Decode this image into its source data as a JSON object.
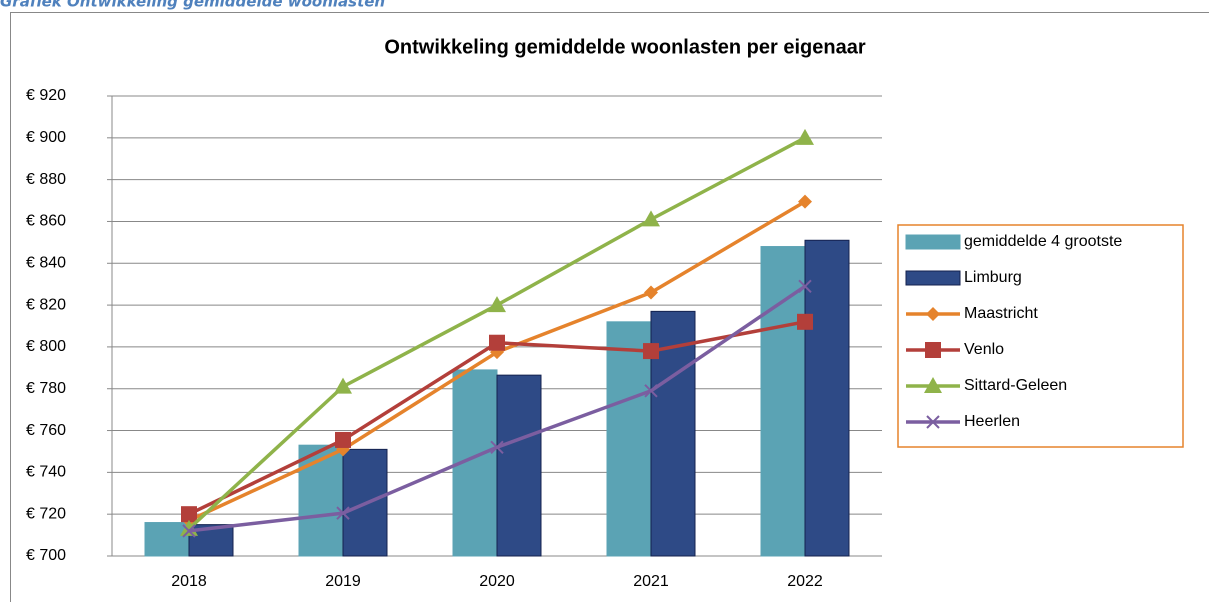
{
  "caption": "Grafiek Ontwikkeling gemiddelde woonlasten",
  "chart_data": {
    "type": "combo",
    "title": "Ontwikkeling gemiddelde woonlasten per eigenaar",
    "categories": [
      "2018",
      "2019",
      "2020",
      "2021",
      "2022"
    ],
    "series": [
      {
        "name": "gemiddelde 4 grootste",
        "type": "bar",
        "color": "#5ba3b4",
        "values": [
          716,
          753,
          789,
          812,
          848
        ]
      },
      {
        "name": "Limburg",
        "type": "bar",
        "color": "#2e4a86",
        "values": [
          715,
          751,
          786.5,
          817,
          851
        ]
      },
      {
        "name": "Maastricht",
        "type": "line",
        "marker": "diamond",
        "color": "#e5832c",
        "values": [
          717,
          751,
          797.5,
          826,
          869.5
        ]
      },
      {
        "name": "Venlo",
        "type": "line",
        "marker": "square",
        "color": "#b33f3a",
        "values": [
          720,
          755.5,
          802,
          798,
          812
        ]
      },
      {
        "name": "Sittard-Geleen",
        "type": "line",
        "marker": "triangle",
        "color": "#8fb34a",
        "values": [
          713,
          781,
          820,
          861,
          900
        ]
      },
      {
        "name": "Heerlen",
        "type": "line",
        "marker": "x",
        "color": "#7b5ea0",
        "values": [
          712,
          720.5,
          752,
          779,
          829
        ]
      }
    ],
    "ylim": [
      700,
      920
    ],
    "yticks": [
      {
        "value": 700,
        "label": "€ 700"
      },
      {
        "value": 720,
        "label": "€ 720"
      },
      {
        "value": 740,
        "label": "€ 740"
      },
      {
        "value": 760,
        "label": "€ 760"
      },
      {
        "value": 780,
        "label": "€ 780"
      },
      {
        "value": 800,
        "label": "€ 800"
      },
      {
        "value": 820,
        "label": "€ 820"
      },
      {
        "value": 840,
        "label": "€ 840"
      },
      {
        "value": 860,
        "label": "€ 860"
      },
      {
        "value": 880,
        "label": "€ 880"
      },
      {
        "value": 900,
        "label": "€ 900"
      },
      {
        "value": 920,
        "label": "€ 920"
      }
    ],
    "grid": true,
    "legend": "right"
  }
}
